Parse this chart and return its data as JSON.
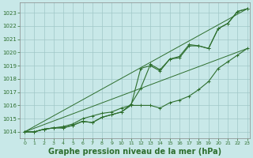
{
  "background_color": "#c8e8e8",
  "grid_color": "#a0c8c8",
  "line_color": "#2d6e2d",
  "xlabel": "Graphe pression niveau de la mer (hPa)",
  "xlabel_fontsize": 7,
  "ylabel_ticks": [
    1014,
    1015,
    1016,
    1017,
    1018,
    1019,
    1020,
    1021,
    1022,
    1023
  ],
  "xlim": [
    -0.5,
    23.3
  ],
  "ylim": [
    1013.5,
    1023.8
  ],
  "xticks": [
    0,
    1,
    2,
    3,
    4,
    5,
    6,
    7,
    8,
    9,
    10,
    11,
    12,
    13,
    14,
    15,
    16,
    17,
    18,
    19,
    20,
    21,
    22,
    23
  ],
  "series1": [
    1014.0,
    1014.0,
    1014.2,
    1014.3,
    1014.3,
    1014.5,
    1014.8,
    1014.7,
    1015.1,
    1015.3,
    1015.5,
    1016.0,
    1018.8,
    1019.0,
    1018.6,
    1019.5,
    1019.6,
    1020.5,
    1020.5,
    1020.3,
    1021.8,
    1022.2,
    1023.1,
    1023.3
  ],
  "series2": [
    1014.0,
    1014.0,
    1014.2,
    1014.3,
    1014.4,
    1014.6,
    1015.0,
    1015.2,
    1015.4,
    1015.5,
    1015.8,
    1016.0,
    1016.0,
    1016.0,
    1015.8,
    1016.2,
    1016.4,
    1016.7,
    1017.2,
    1017.8,
    1018.8,
    1019.3,
    1019.8,
    1020.3
  ],
  "series3": [
    1014.0,
    1014.0,
    1014.2,
    1014.3,
    1014.3,
    1014.5,
    1014.8,
    1014.7,
    1015.1,
    1015.3,
    1015.5,
    1016.1,
    1017.3,
    1019.1,
    1018.7,
    1019.5,
    1019.7,
    1020.6,
    1020.5,
    1020.3,
    1021.8,
    1022.2,
    1023.1,
    1023.3
  ],
  "straight_line1": [
    1014.0,
    1023.3
  ],
  "straight_line2": [
    1014.0,
    1020.3
  ],
  "marker": "+"
}
